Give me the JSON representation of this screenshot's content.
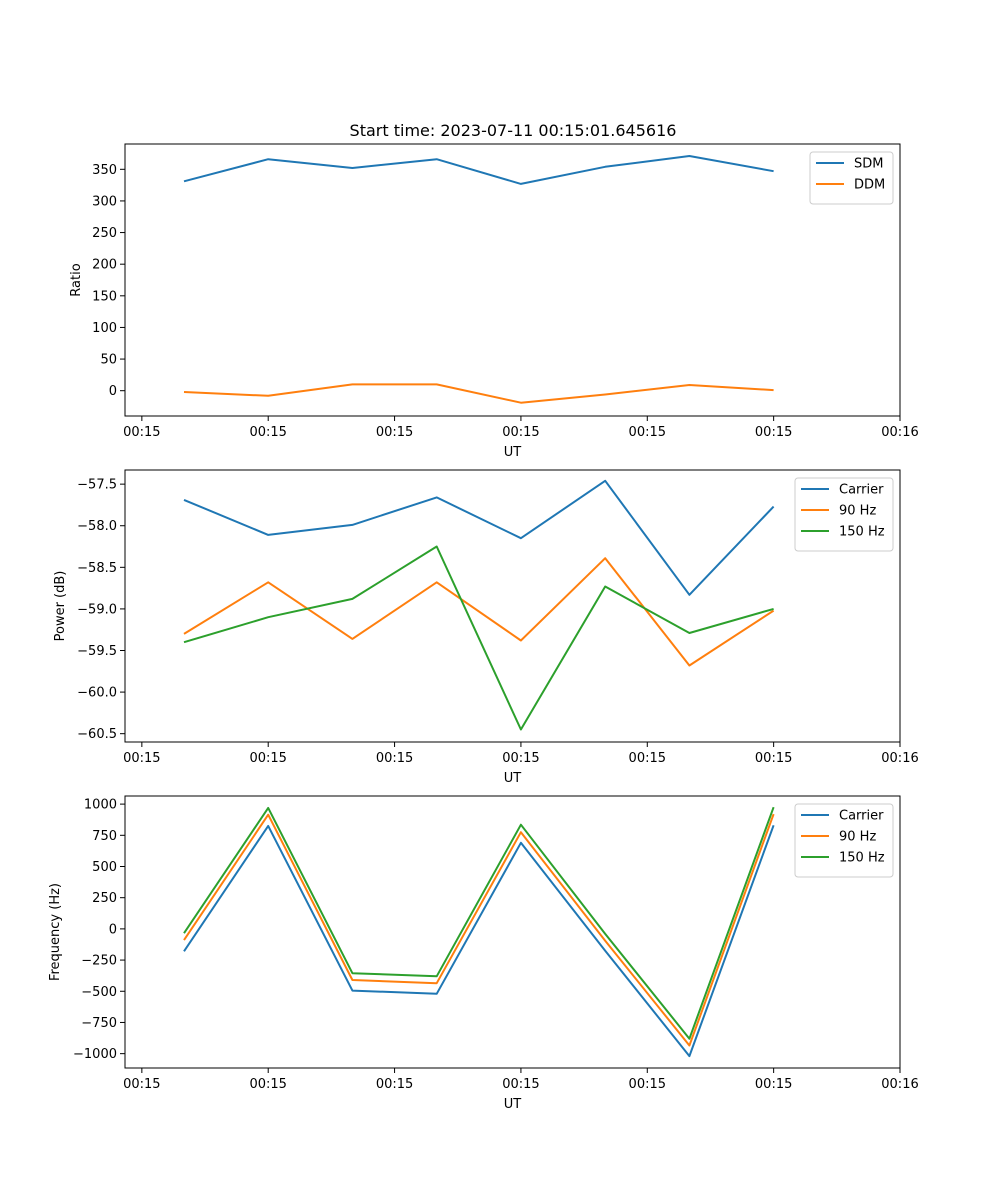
{
  "figure": {
    "title": "Start time: 2023-07-11 00:15:01.645616"
  },
  "colors": {
    "blue": "#1f77b4",
    "orange": "#ff7f0e",
    "green": "#2ca02c"
  },
  "chart_data": [
    {
      "type": "line",
      "title": "Start time: 2023-07-11 00:15:01.645616",
      "xlabel": "UT",
      "ylabel": "Ratio",
      "x": [
        1,
        2,
        3,
        4,
        5,
        6,
        7,
        8
      ],
      "xlim": [
        0.3,
        9.5
      ],
      "x_ticks": [
        0.5,
        2,
        3.5,
        5,
        6.5,
        8,
        9.5
      ],
      "x_tick_labels": [
        "00:15",
        "00:15",
        "00:15",
        "00:15",
        "00:15",
        "00:15",
        "00:16"
      ],
      "ylim": [
        -40,
        390
      ],
      "y_ticks": [
        0,
        50,
        100,
        150,
        200,
        250,
        300,
        350
      ],
      "y_tick_labels": [
        "0",
        "50",
        "100",
        "150",
        "200",
        "250",
        "300",
        "350"
      ],
      "legend_position": "top-right",
      "series": [
        {
          "name": "SDM",
          "color": "#1f77b4",
          "values": [
            331,
            366,
            352,
            366,
            327,
            354,
            371,
            347
          ]
        },
        {
          "name": "DDM",
          "color": "#ff7f0e",
          "values": [
            -2,
            -8,
            10,
            10,
            -19,
            -6,
            9,
            1
          ]
        }
      ]
    },
    {
      "type": "line",
      "title": "",
      "xlabel": "UT",
      "ylabel": "Power (dB)",
      "x": [
        1,
        2,
        3,
        4,
        5,
        6,
        7,
        8
      ],
      "xlim": [
        0.3,
        9.5
      ],
      "x_ticks": [
        0.5,
        2,
        3.5,
        5,
        6.5,
        8,
        9.5
      ],
      "x_tick_labels": [
        "00:15",
        "00:15",
        "00:15",
        "00:15",
        "00:15",
        "00:15",
        "00:16"
      ],
      "ylim": [
        -60.6,
        -57.33
      ],
      "y_ticks": [
        -60.5,
        -60.0,
        -59.5,
        -59.0,
        -58.5,
        -58.0,
        -57.5
      ],
      "y_tick_labels": [
        "−60.5",
        "−60.0",
        "−59.5",
        "−59.0",
        "−58.5",
        "−58.0",
        "−57.5"
      ],
      "legend_position": "top-right",
      "series": [
        {
          "name": "Carrier",
          "color": "#1f77b4",
          "values": [
            -57.69,
            -58.11,
            -57.99,
            -57.66,
            -58.15,
            -57.46,
            -58.83,
            -57.77
          ]
        },
        {
          "name": "90 Hz",
          "color": "#ff7f0e",
          "values": [
            -59.3,
            -58.68,
            -59.36,
            -58.68,
            -59.38,
            -58.39,
            -59.68,
            -59.02
          ]
        },
        {
          "name": "150 Hz",
          "color": "#2ca02c",
          "values": [
            -59.4,
            -59.1,
            -58.88,
            -58.25,
            -60.45,
            -58.73,
            -59.29,
            -59.0
          ]
        }
      ]
    },
    {
      "type": "line",
      "title": "",
      "xlabel": "UT",
      "ylabel": "Frequency (Hz)",
      "x": [
        1,
        2,
        3,
        4,
        5,
        6,
        7,
        8
      ],
      "xlim": [
        0.3,
        9.5
      ],
      "x_ticks": [
        0.5,
        2,
        3.5,
        5,
        6.5,
        8,
        9.5
      ],
      "x_tick_labels": [
        "00:15",
        "00:15",
        "00:15",
        "00:15",
        "00:15",
        "00:15",
        "00:16"
      ],
      "ylim": [
        -1115,
        1065
      ],
      "y_ticks": [
        -1000,
        -750,
        -500,
        -250,
        0,
        250,
        500,
        750,
        1000
      ],
      "y_tick_labels": [
        "−1000",
        "−750",
        "−500",
        "−250",
        "0",
        "250",
        "500",
        "750",
        "1000"
      ],
      "legend_position": "top-right",
      "series": [
        {
          "name": "Carrier",
          "color": "#1f77b4",
          "values": [
            -180,
            825,
            -495,
            -520,
            690,
            -175,
            -1020,
            830
          ]
        },
        {
          "name": "90 Hz",
          "color": "#ff7f0e",
          "values": [
            -90,
            915,
            -410,
            -435,
            775,
            -95,
            -935,
            920
          ]
        },
        {
          "name": "150 Hz",
          "color": "#2ca02c",
          "values": [
            -35,
            970,
            -355,
            -380,
            835,
            -40,
            -880,
            975
          ]
        }
      ]
    }
  ]
}
